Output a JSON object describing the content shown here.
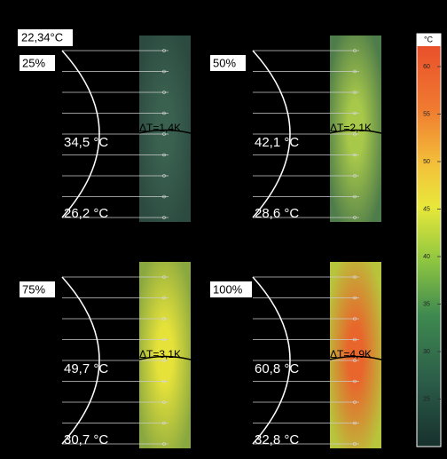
{
  "reference_label": "22,34°C",
  "panels": [
    {
      "load": "25%",
      "max_temp": "34,5 °C",
      "delta_t": "ΔT=1,4K",
      "min_temp": "26,2 °C"
    },
    {
      "load": "50%",
      "max_temp": "42,1 °C",
      "delta_t": "ΔT=2,1K",
      "min_temp": "28,6 °C"
    },
    {
      "load": "75%",
      "max_temp": "49,7 °C",
      "delta_t": "ΔT=3,1K",
      "min_temp": "30,7 °C"
    },
    {
      "load": "100%",
      "max_temp": "60,8 °C",
      "delta_t": "ΔT=4,9K",
      "min_temp": "32,8 °C"
    }
  ],
  "colorbar": {
    "unit": "°C",
    "ticks": [
      "60",
      "55",
      "50",
      "45",
      "40",
      "35",
      "30",
      "25"
    ]
  }
}
